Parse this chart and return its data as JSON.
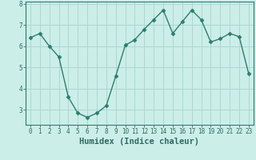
{
  "x": [
    0,
    1,
    2,
    3,
    4,
    5,
    6,
    7,
    8,
    9,
    10,
    11,
    12,
    13,
    14,
    15,
    16,
    17,
    18,
    19,
    20,
    21,
    22,
    23
  ],
  "y": [
    6.4,
    6.6,
    6.0,
    5.5,
    3.6,
    2.85,
    2.65,
    2.85,
    3.2,
    4.6,
    6.05,
    6.3,
    6.8,
    7.25,
    7.7,
    6.6,
    7.15,
    7.7,
    7.25,
    6.2,
    6.35,
    6.6,
    6.45,
    4.7
  ],
  "line_color": "#2d7d6e",
  "marker": "D",
  "markersize": 2.5,
  "linewidth": 1.0,
  "bg_color": "#cceee8",
  "grid_color": "#aad8d2",
  "xlabel": "Humidex (Indice chaleur)",
  "xlabel_fontsize": 7.5,
  "ylim": [
    2.3,
    8.1
  ],
  "yticks": [
    3,
    4,
    5,
    6,
    7,
    8
  ],
  "xticks": [
    0,
    1,
    2,
    3,
    4,
    5,
    6,
    7,
    8,
    9,
    10,
    11,
    12,
    13,
    14,
    15,
    16,
    17,
    18,
    19,
    20,
    21,
    22,
    23
  ],
  "tick_fontsize": 5.5
}
